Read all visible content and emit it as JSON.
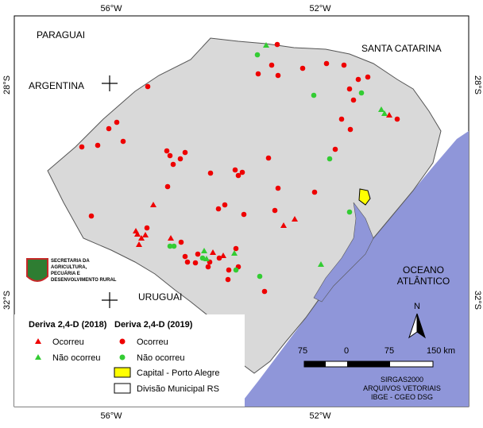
{
  "graticule": {
    "top": [
      "56°W",
      "52°W"
    ],
    "bottom": [
      "56°W",
      "52°W"
    ],
    "left": [
      "28°S",
      "32°S"
    ],
    "right": [
      "28°S",
      "32°S"
    ]
  },
  "places": {
    "paraguai": "PARAGUAI",
    "argentina": "ARGENTINA",
    "santa_catarina": "SANTA CATARINA",
    "uruguai": "URUGUAI",
    "ocean": [
      "OCEANO",
      "ATLÂNTICO"
    ]
  },
  "logo": [
    "SECRETARIA DA",
    "AGRICULTURA,",
    "PECUÁRIA E",
    "DESENVOLVIMENTO RURAL"
  ],
  "legend": {
    "title_2018": "Deriva 2,4-D (2018)",
    "title_2019": "Deriva 2,4-D (2019)",
    "occurred_2018": "Ocorreu",
    "not_occurred_2018": "Não ocorreu",
    "occurred_2019": "Ocorreu",
    "not_occurred_2019": "Não ocorreu",
    "capital": "Capital - Porto Alegre",
    "division": "Divisão Municipal RS"
  },
  "north": "N",
  "scale": [
    "75",
    "0",
    "75",
    "150 km"
  ],
  "credits": [
    "SIRGAS2000",
    "ARQUIVOS VETORIAIS",
    "IBGE - CGEO DSG"
  ]
}
